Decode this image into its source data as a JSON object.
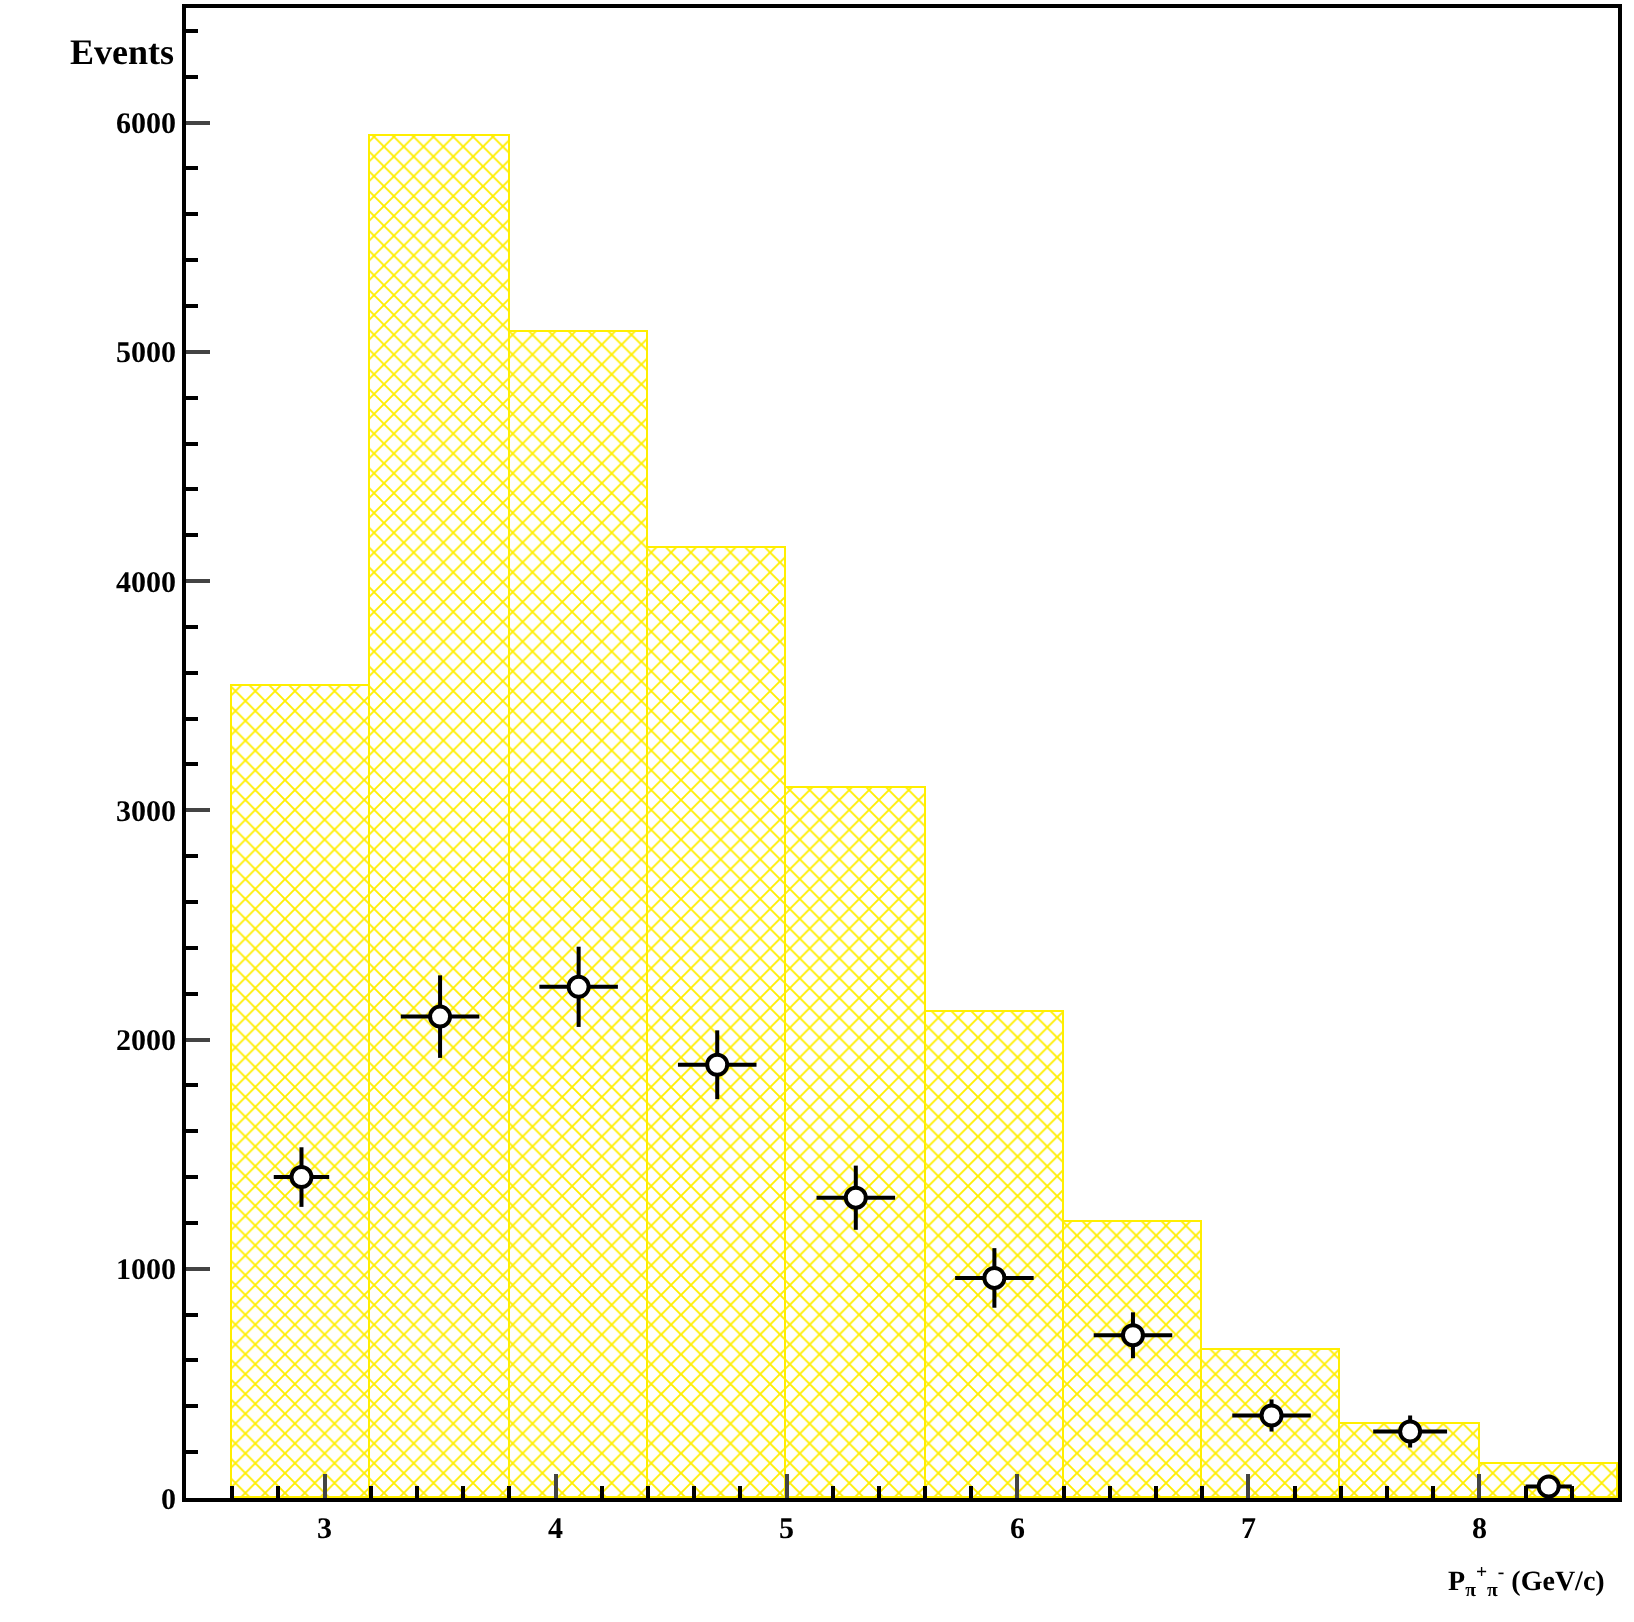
{
  "chart_data": {
    "type": "histogram",
    "xlabel": "P$_{π}$$^{+}$$_{π}$$^{-}$ (GeV/c)",
    "ylabel": "Events",
    "xlim": [
      2.4,
      8.6
    ],
    "xticks": [
      3,
      4,
      5,
      6,
      7,
      8
    ],
    "ylim": [
      0,
      6500
    ],
    "yticks": [
      0,
      1000,
      2000,
      3000,
      4000,
      5000,
      6000
    ],
    "grid": false,
    "series": [
      {
        "type": "histogram",
        "color": "#ffee00",
        "bins": [
          2.6,
          3.2,
          3.8,
          4.4,
          5.0,
          5.6,
          6.2,
          6.8,
          7.4,
          8.0,
          8.6
        ],
        "values": [
          3540,
          5940,
          5090,
          4140,
          3100,
          2120,
          1200,
          650,
          320,
          150
        ]
      },
      {
        "type": "scatter",
        "color": "#000000",
        "marker": "circle",
        "x": [
          2.9,
          3.5,
          4.1,
          4.7,
          5.3,
          5.9,
          6.5,
          7.1,
          7.7,
          8.3
        ],
        "values": [
          1400,
          2100,
          2230,
          1890,
          1310,
          960,
          710,
          360,
          290,
          50
        ],
        "errors": [
          130,
          180,
          175,
          150,
          140,
          130,
          100,
          70,
          70,
          20
        ],
        "xerrors": [
          0.12,
          0.17,
          0.17,
          0.17,
          0.17,
          0.17,
          0.17,
          0.17,
          0.16,
          0.1
        ]
      }
    ]
  }
}
